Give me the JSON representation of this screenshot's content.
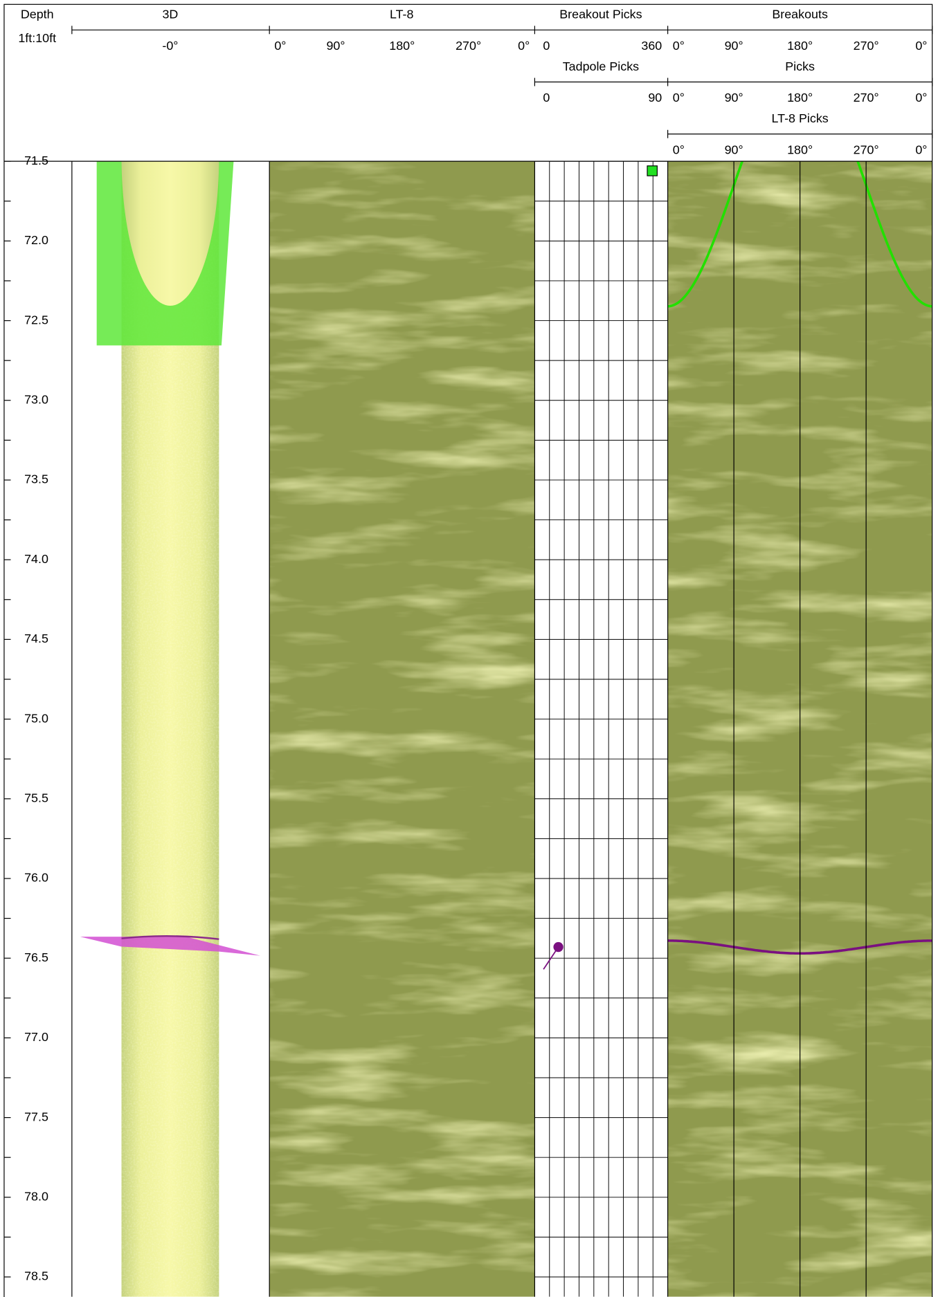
{
  "depth_track": {
    "title": "Depth",
    "scale": "1ft:10ft",
    "range": [
      71.5,
      78.61
    ],
    "ticks": [
      {
        "value": 71.5,
        "label": "71.5"
      },
      {
        "value": 72,
        "label": "72.0"
      },
      {
        "value": 72.5,
        "label": "72.5"
      },
      {
        "value": 73,
        "label": "73.0"
      },
      {
        "value": 73.5,
        "label": "73.5"
      },
      {
        "value": 74,
        "label": "74.0"
      },
      {
        "value": 74.5,
        "label": "74.5"
      },
      {
        "value": 75,
        "label": "75.0"
      },
      {
        "value": 75.5,
        "label": "75.5"
      },
      {
        "value": 76,
        "label": "76.0"
      },
      {
        "value": 76.5,
        "label": "76.5"
      },
      {
        "value": 77,
        "label": "77.0"
      },
      {
        "value": 77.5,
        "label": "77.5"
      },
      {
        "value": 78,
        "label": "78.0"
      },
      {
        "value": 78.5,
        "label": "78.5"
      }
    ]
  },
  "track_3d": {
    "title": "3D",
    "scale_label": "-0°"
  },
  "track_lt8": {
    "title": "LT-8",
    "scale_labels": [
      "0°",
      "90°",
      "180°",
      "270°",
      "0°"
    ]
  },
  "breakout_picks": {
    "title": "Breakout Picks",
    "scale": [
      0,
      360
    ],
    "picks": [
      {
        "depth": 71.56,
        "azimuth": 318
      }
    ]
  },
  "tadpole_picks": {
    "title": "Tadpole Picks",
    "scale": [
      0,
      90
    ],
    "picks": [
      {
        "depth": 76.43,
        "dip": 16
      }
    ]
  },
  "breakouts": {
    "title": "Breakouts",
    "scale_labels": [
      "0°",
      "90°",
      "180°",
      "270°",
      "0°"
    ]
  },
  "picks": {
    "title": "Picks",
    "scale_labels": [
      "0°",
      "90°",
      "180°",
      "270°",
      "0°"
    ]
  },
  "lt8_picks": {
    "title": "LT-8 Picks",
    "scale_labels": [
      "0°",
      "90°",
      "180°",
      "270°",
      "0°"
    ],
    "sinusoids": [
      {
        "depth": 71.65,
        "amplitude": 0.76,
        "color": "#22e000"
      },
      {
        "depth": 76.43,
        "amplitude": 0.04,
        "color": "#7a1080"
      }
    ]
  }
}
